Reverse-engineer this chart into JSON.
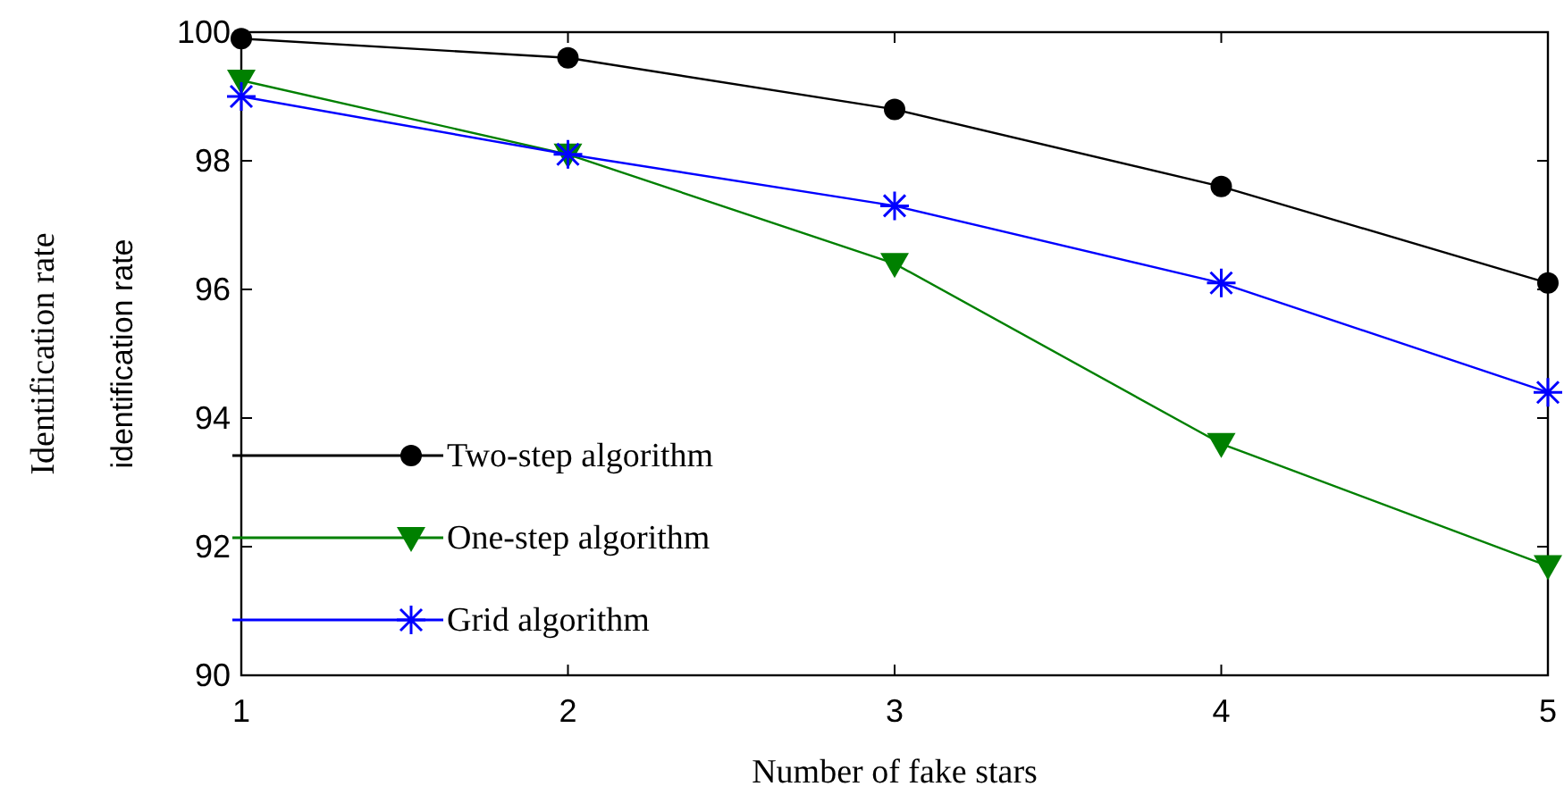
{
  "chart_data": {
    "type": "line",
    "xlabel": "Number of fake stars",
    "ylabel": "Identification rate",
    "annotations": [
      "identification rate"
    ],
    "x": [
      1,
      2,
      3,
      4,
      5
    ],
    "xlim": [
      1,
      5
    ],
    "xticks": [
      1,
      2,
      3,
      4,
      5
    ],
    "ylim": [
      90,
      100
    ],
    "yticks": [
      90,
      92,
      94,
      96,
      98,
      100
    ],
    "grid": false,
    "legend": "bottom left",
    "line_style": "solid",
    "series": [
      {
        "name": "Two-step algorithm",
        "color": "#000000",
        "marker": "circle",
        "values": [
          99.9,
          99.6,
          98.8,
          97.6,
          96.1
        ]
      },
      {
        "name": "One-step algorithm",
        "color": "#008000",
        "marker": "triangle",
        "values": [
          99.25,
          98.1,
          96.4,
          93.6,
          91.7
        ]
      },
      {
        "name": "Grid algorithm",
        "color": "#0000ff",
        "marker": "cross",
        "values": [
          99.0,
          98.1,
          97.3,
          96.1,
          94.4
        ]
      }
    ]
  }
}
